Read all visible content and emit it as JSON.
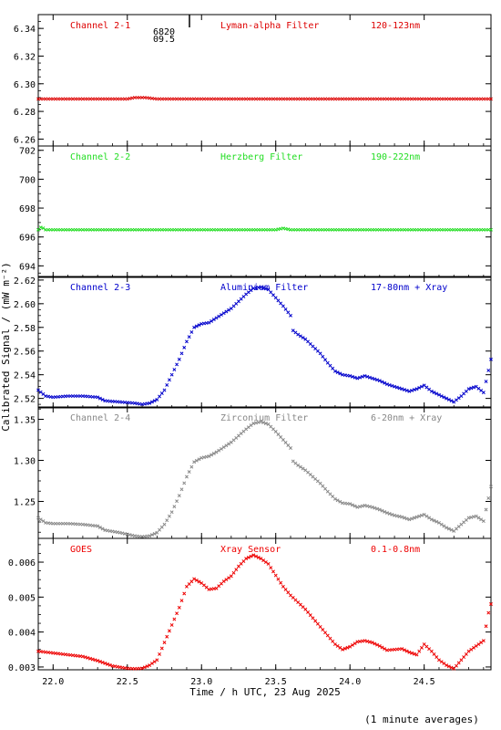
{
  "page": {
    "y_axis_label": "Calibrated Signal / (mW m⁻²)",
    "x_axis_label": "Time / h UTC, 23 Aug 2025",
    "footnote": "(1 minute averages)",
    "marker_text_1": "6820",
    "marker_text_2": "09.5"
  },
  "chart_data": [
    {
      "type": "scatter",
      "panel_name": "Channel 2-1",
      "filter": "Lyman-alpha Filter",
      "band": "120-123nm",
      "color": "#dd0000",
      "ylim": [
        6.255,
        6.35
      ],
      "yticks": [
        6.26,
        6.28,
        6.3,
        6.32,
        6.34
      ],
      "yticklabels": [
        "6.26",
        "6.28",
        "6.30",
        "6.32",
        "6.34"
      ],
      "points": [
        [
          21.9,
          6.289
        ],
        [
          22.5,
          6.289
        ],
        [
          22.55,
          6.29
        ],
        [
          22.62,
          6.29
        ],
        [
          22.7,
          6.289
        ],
        [
          23.5,
          6.289
        ],
        [
          24.2,
          6.289
        ],
        [
          24.95,
          6.289
        ]
      ]
    },
    {
      "type": "scatter",
      "panel_name": "Channel 2-2",
      "filter": "Herzberg Filter",
      "band": "190-222nm",
      "color": "#22dd22",
      "ylim": [
        693.2,
        702.3
      ],
      "yticks": [
        694,
        696,
        698,
        700,
        702
      ],
      "yticklabels": [
        "694",
        "696",
        "698",
        "700",
        "702"
      ],
      "points": [
        [
          21.9,
          696.5
        ],
        [
          21.92,
          696.7
        ],
        [
          21.95,
          696.5
        ],
        [
          23.5,
          696.5
        ],
        [
          23.55,
          696.6
        ],
        [
          23.6,
          696.5
        ],
        [
          24.95,
          696.5
        ]
      ]
    },
    {
      "type": "scatter",
      "panel_name": "Channel 2-3",
      "filter": "Aluminium Filter",
      "band": "17-80nm + Xray",
      "color": "#0000cc",
      "ylim": [
        2.512,
        2.623
      ],
      "yticks": [
        2.52,
        2.54,
        2.56,
        2.58,
        2.6,
        2.62
      ],
      "yticklabels": [
        "2.52",
        "2.54",
        "2.56",
        "2.58",
        "2.60",
        "2.62"
      ],
      "points": [
        [
          21.9,
          2.527
        ],
        [
          21.95,
          2.522
        ],
        [
          22.0,
          2.521
        ],
        [
          22.1,
          2.522
        ],
        [
          22.2,
          2.522
        ],
        [
          22.3,
          2.521
        ],
        [
          22.35,
          2.518
        ],
        [
          22.45,
          2.517
        ],
        [
          22.55,
          2.516
        ],
        [
          22.6,
          2.515
        ],
        [
          22.65,
          2.516
        ],
        [
          22.7,
          2.519
        ],
        [
          22.75,
          2.527
        ],
        [
          22.8,
          2.54
        ],
        [
          22.85,
          2.553
        ],
        [
          22.9,
          2.568
        ],
        [
          22.95,
          2.58
        ],
        [
          23.0,
          2.583
        ],
        [
          23.05,
          2.584
        ],
        [
          23.1,
          2.588
        ],
        [
          23.15,
          2.592
        ],
        [
          23.2,
          2.596
        ],
        [
          23.25,
          2.602
        ],
        [
          23.3,
          2.608
        ],
        [
          23.35,
          2.613
        ],
        [
          23.4,
          2.614
        ],
        [
          23.45,
          2.612
        ],
        [
          23.5,
          2.605
        ],
        [
          23.55,
          2.598
        ],
        [
          23.6,
          2.59
        ],
        [
          23.61,
          2.578
        ],
        [
          23.65,
          2.574
        ],
        [
          23.7,
          2.57
        ],
        [
          23.75,
          2.564
        ],
        [
          23.8,
          2.558
        ],
        [
          23.85,
          2.55
        ],
        [
          23.9,
          2.543
        ],
        [
          23.95,
          2.54
        ],
        [
          24.0,
          2.539
        ],
        [
          24.05,
          2.537
        ],
        [
          24.1,
          2.539
        ],
        [
          24.15,
          2.537
        ],
        [
          24.2,
          2.535
        ],
        [
          24.25,
          2.532
        ],
        [
          24.3,
          2.53
        ],
        [
          24.35,
          2.528
        ],
        [
          24.4,
          2.526
        ],
        [
          24.45,
          2.528
        ],
        [
          24.5,
          2.531
        ],
        [
          24.55,
          2.526
        ],
        [
          24.6,
          2.523
        ],
        [
          24.65,
          2.52
        ],
        [
          24.7,
          2.517
        ],
        [
          24.75,
          2.522
        ],
        [
          24.8,
          2.528
        ],
        [
          24.85,
          2.53
        ],
        [
          24.9,
          2.525
        ],
        [
          24.95,
          2.553
        ]
      ]
    },
    {
      "type": "scatter",
      "panel_name": "Channel 2-4",
      "filter": "Zirconium Filter",
      "band": "6-20nm + Xray",
      "color": "#888888",
      "ylim": [
        1.205,
        1.365
      ],
      "yticks": [
        1.25,
        1.3,
        1.35
      ],
      "yticklabels": [
        "1.25",
        "1.30",
        "1.35"
      ],
      "points": [
        [
          21.9,
          1.23
        ],
        [
          21.95,
          1.224
        ],
        [
          22.0,
          1.223
        ],
        [
          22.1,
          1.223
        ],
        [
          22.2,
          1.222
        ],
        [
          22.3,
          1.22
        ],
        [
          22.35,
          1.215
        ],
        [
          22.45,
          1.212
        ],
        [
          22.55,
          1.208
        ],
        [
          22.6,
          1.207
        ],
        [
          22.65,
          1.208
        ],
        [
          22.7,
          1.212
        ],
        [
          22.75,
          1.222
        ],
        [
          22.8,
          1.237
        ],
        [
          22.85,
          1.257
        ],
        [
          22.9,
          1.28
        ],
        [
          22.95,
          1.298
        ],
        [
          23.0,
          1.303
        ],
        [
          23.05,
          1.305
        ],
        [
          23.1,
          1.31
        ],
        [
          23.15,
          1.316
        ],
        [
          23.2,
          1.322
        ],
        [
          23.25,
          1.33
        ],
        [
          23.3,
          1.338
        ],
        [
          23.35,
          1.345
        ],
        [
          23.4,
          1.347
        ],
        [
          23.45,
          1.344
        ],
        [
          23.5,
          1.335
        ],
        [
          23.55,
          1.325
        ],
        [
          23.6,
          1.315
        ],
        [
          23.61,
          1.3
        ],
        [
          23.65,
          1.294
        ],
        [
          23.7,
          1.288
        ],
        [
          23.75,
          1.28
        ],
        [
          23.8,
          1.272
        ],
        [
          23.85,
          1.262
        ],
        [
          23.9,
          1.253
        ],
        [
          23.95,
          1.248
        ],
        [
          24.0,
          1.247
        ],
        [
          24.05,
          1.243
        ],
        [
          24.1,
          1.245
        ],
        [
          24.15,
          1.243
        ],
        [
          24.2,
          1.24
        ],
        [
          24.25,
          1.236
        ],
        [
          24.3,
          1.233
        ],
        [
          24.35,
          1.231
        ],
        [
          24.4,
          1.228
        ],
        [
          24.45,
          1.231
        ],
        [
          24.5,
          1.234
        ],
        [
          24.55,
          1.228
        ],
        [
          24.6,
          1.224
        ],
        [
          24.65,
          1.218
        ],
        [
          24.7,
          1.214
        ],
        [
          24.75,
          1.222
        ],
        [
          24.8,
          1.23
        ],
        [
          24.85,
          1.232
        ],
        [
          24.9,
          1.226
        ],
        [
          24.95,
          1.268
        ]
      ]
    },
    {
      "type": "scatter",
      "panel_name": "GOES",
      "filter": "Xray Sensor",
      "band": "0.1-0.8nm",
      "color": "#ee0000",
      "ylim": [
        0.00292,
        0.00668
      ],
      "yticks": [
        0.003,
        0.004,
        0.005,
        0.006
      ],
      "yticklabels": [
        "0.003",
        "0.004",
        "0.005",
        "0.006"
      ],
      "points": [
        [
          21.9,
          0.00345
        ],
        [
          22.0,
          0.0034
        ],
        [
          22.1,
          0.00335
        ],
        [
          22.2,
          0.0033
        ],
        [
          22.3,
          0.00318
        ],
        [
          22.4,
          0.00303
        ],
        [
          22.5,
          0.00296
        ],
        [
          22.55,
          0.00295
        ],
        [
          22.6,
          0.00296
        ],
        [
          22.65,
          0.00305
        ],
        [
          22.7,
          0.0032
        ],
        [
          22.75,
          0.0037
        ],
        [
          22.8,
          0.0042
        ],
        [
          22.85,
          0.0047
        ],
        [
          22.9,
          0.0053
        ],
        [
          22.95,
          0.00552
        ],
        [
          23.0,
          0.0054
        ],
        [
          23.05,
          0.00522
        ],
        [
          23.1,
          0.00525
        ],
        [
          23.15,
          0.00545
        ],
        [
          23.2,
          0.0056
        ],
        [
          23.25,
          0.00588
        ],
        [
          23.3,
          0.0061
        ],
        [
          23.35,
          0.0062
        ],
        [
          23.4,
          0.0061
        ],
        [
          23.45,
          0.00595
        ],
        [
          23.5,
          0.00562
        ],
        [
          23.55,
          0.0053
        ],
        [
          23.6,
          0.00505
        ],
        [
          23.65,
          0.00485
        ],
        [
          23.7,
          0.00465
        ],
        [
          23.75,
          0.0044
        ],
        [
          23.8,
          0.00415
        ],
        [
          23.85,
          0.0039
        ],
        [
          23.9,
          0.00365
        ],
        [
          23.95,
          0.0035
        ],
        [
          24.0,
          0.00358
        ],
        [
          24.05,
          0.00372
        ],
        [
          24.1,
          0.00375
        ],
        [
          24.15,
          0.0037
        ],
        [
          24.2,
          0.0036
        ],
        [
          24.25,
          0.00348
        ],
        [
          24.3,
          0.0035
        ],
        [
          24.35,
          0.00352
        ],
        [
          24.4,
          0.00342
        ],
        [
          24.45,
          0.00335
        ],
        [
          24.5,
          0.00365
        ],
        [
          24.55,
          0.00345
        ],
        [
          24.6,
          0.0032
        ],
        [
          24.65,
          0.00305
        ],
        [
          24.7,
          0.00295
        ],
        [
          24.75,
          0.0032
        ],
        [
          24.8,
          0.00345
        ],
        [
          24.85,
          0.0036
        ],
        [
          24.9,
          0.00375
        ],
        [
          24.93,
          0.0045
        ],
        [
          24.95,
          0.0048
        ]
      ]
    }
  ],
  "x_axis": {
    "xlim": [
      21.9,
      24.95
    ],
    "xticks": [
      22.0,
      22.5,
      23.0,
      23.5,
      24.0,
      24.5
    ],
    "xticklabels": [
      "22.0",
      "22.5",
      "23.0",
      "23.5",
      "24.0",
      "24.5"
    ]
  }
}
